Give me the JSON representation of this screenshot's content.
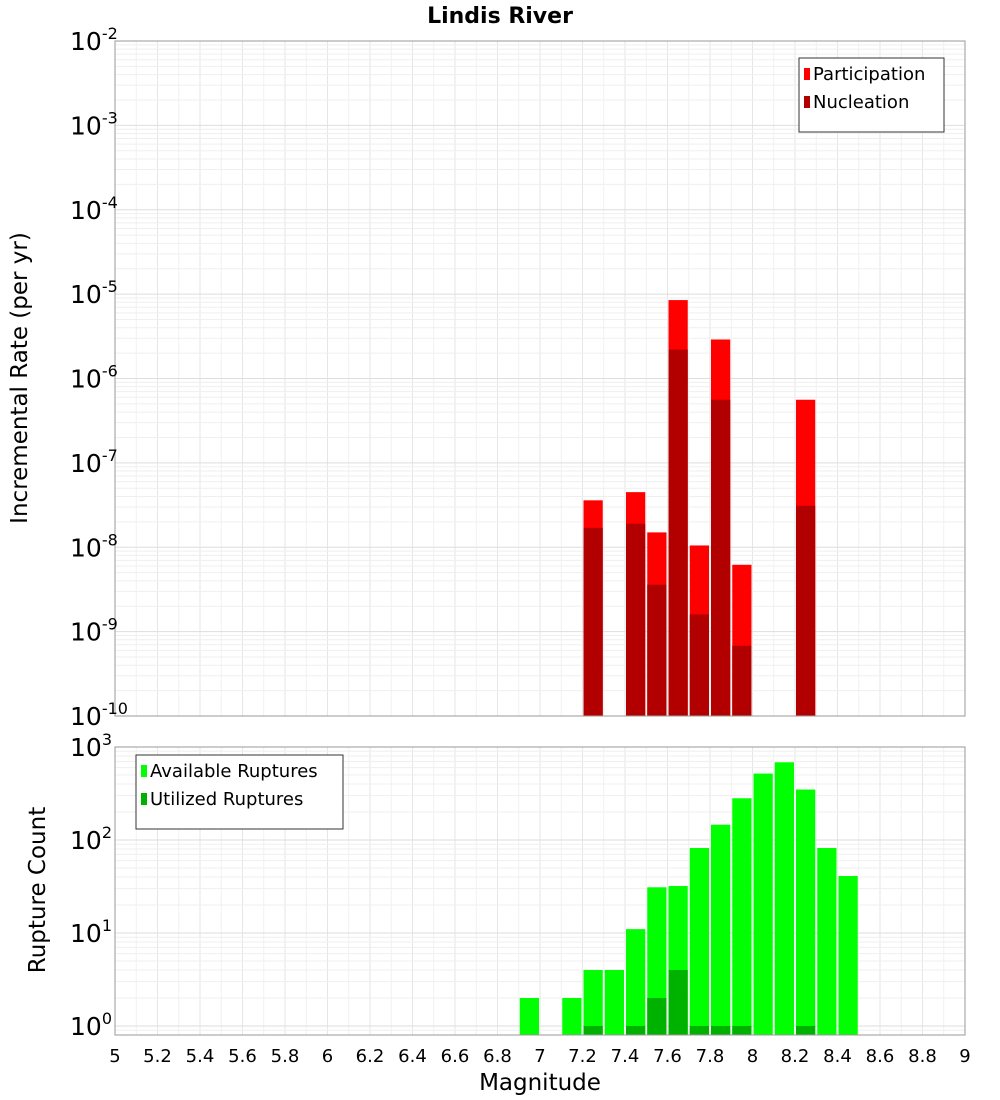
{
  "chart_data": [
    {
      "type": "bar",
      "title": "Lindis River",
      "xlabel": "",
      "ylabel": "Incremental Rate (per yr)",
      "yscale": "log",
      "ylim": [
        1e-10,
        0.01
      ],
      "xlim": [
        5,
        9
      ],
      "bar_width": 0.1,
      "legend_position": "top-right",
      "grid": true,
      "series": [
        {
          "name": "Participation",
          "color": "#ff0000",
          "x": [
            7.25,
            7.45,
            7.55,
            7.65,
            7.75,
            7.85,
            7.95,
            8.25
          ],
          "values": [
            3.6e-08,
            4.5e-08,
            1.5e-08,
            8.5e-06,
            1.05e-08,
            2.9e-06,
            6.2e-09,
            5.6e-07
          ]
        },
        {
          "name": "Nucleation",
          "color": "#b20000",
          "x": [
            7.25,
            7.45,
            7.55,
            7.65,
            7.75,
            7.85,
            7.95,
            8.25
          ],
          "values": [
            1.7e-08,
            1.9e-08,
            3.6e-09,
            2.2e-06,
            1.6e-09,
            5.6e-07,
            6.8e-10,
            3.1e-08
          ]
        }
      ],
      "y_ticks": [
        {
          "base": "10",
          "exp": "-2",
          "value": 0.01
        },
        {
          "base": "10",
          "exp": "-3",
          "value": 0.001
        },
        {
          "base": "10",
          "exp": "-4",
          "value": 0.0001
        },
        {
          "base": "10",
          "exp": "-5",
          "value": 1e-05
        },
        {
          "base": "10",
          "exp": "-6",
          "value": 1e-06
        },
        {
          "base": "10",
          "exp": "-7",
          "value": 1e-07
        },
        {
          "base": "10",
          "exp": "-8",
          "value": 1e-08
        },
        {
          "base": "10",
          "exp": "-9",
          "value": 1e-09
        },
        {
          "base": "10",
          "exp": "-10",
          "value": 1e-10
        }
      ]
    },
    {
      "type": "bar",
      "title": "",
      "xlabel": "Magnitude",
      "ylabel": "Rupture Count",
      "yscale": "log",
      "ylim": [
        0.8,
        1000
      ],
      "xlim": [
        5,
        9
      ],
      "bar_width": 0.1,
      "legend_position": "top-left",
      "grid": true,
      "series": [
        {
          "name": "Available Ruptures",
          "color": "#00ff00",
          "x": [
            6.95,
            7.15,
            7.25,
            7.35,
            7.45,
            7.55,
            7.65,
            7.75,
            7.85,
            7.95,
            8.05,
            8.15,
            8.25,
            8.35,
            8.45
          ],
          "values": [
            2,
            2,
            4,
            4,
            11,
            31,
            32,
            82,
            146,
            281,
            518,
            685,
            349,
            82,
            41
          ]
        },
        {
          "name": "Utilized Ruptures",
          "color": "#00b200",
          "x": [
            7.25,
            7.45,
            7.55,
            7.65,
            7.75,
            7.85,
            7.95,
            8.25
          ],
          "values": [
            1,
            1,
            2,
            4,
            1,
            1,
            1,
            1
          ]
        }
      ],
      "x_ticks": [
        "5",
        "5.2",
        "5.4",
        "5.6",
        "5.8",
        "6",
        "6.2",
        "6.4",
        "6.6",
        "6.8",
        "7",
        "7.2",
        "7.4",
        "7.6",
        "7.8",
        "8",
        "8.2",
        "8.4",
        "8.6",
        "8.8",
        "9"
      ],
      "y_ticks": [
        {
          "base": "10",
          "exp": "3",
          "value": 1000
        },
        {
          "base": "10",
          "exp": "2",
          "value": 100
        },
        {
          "base": "10",
          "exp": "1",
          "value": 10
        },
        {
          "base": "10",
          "exp": "0",
          "value": 1
        }
      ]
    }
  ]
}
